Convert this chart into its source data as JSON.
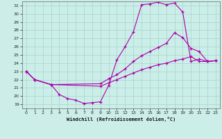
{
  "xlabel": "Windchill (Refroidissement éolien,°C)",
  "background_color": "#cceee8",
  "grid_color": "#aad8d0",
  "line_color": "#aa00aa",
  "xlim": [
    -0.5,
    23.5
  ],
  "ylim": [
    18.5,
    31.5
  ],
  "xticks": [
    0,
    1,
    2,
    3,
    4,
    5,
    6,
    7,
    8,
    9,
    10,
    11,
    12,
    13,
    14,
    15,
    16,
    17,
    18,
    19,
    20,
    21,
    22,
    23
  ],
  "yticks": [
    19,
    20,
    21,
    22,
    23,
    24,
    25,
    26,
    27,
    28,
    29,
    30,
    31
  ],
  "line1_x": [
    0,
    1,
    3,
    4,
    5,
    6,
    7,
    8,
    9,
    10,
    11,
    12,
    13,
    14,
    15,
    16,
    17,
    18,
    19,
    20,
    21,
    22,
    23
  ],
  "line1_y": [
    23.0,
    22.0,
    21.4,
    20.2,
    19.7,
    19.5,
    19.1,
    19.2,
    19.3,
    21.3,
    24.4,
    26.0,
    27.8,
    31.1,
    31.2,
    31.4,
    31.1,
    31.3,
    30.2,
    24.2,
    24.5,
    24.2,
    24.3
  ],
  "line2_x": [
    0,
    1,
    3,
    9,
    10,
    11,
    12,
    13,
    14,
    15,
    16,
    17,
    18,
    19,
    20,
    21,
    22,
    23
  ],
  "line2_y": [
    23.0,
    22.0,
    21.4,
    21.5,
    22.1,
    22.6,
    23.3,
    24.2,
    24.9,
    25.4,
    25.9,
    26.4,
    27.7,
    27.1,
    25.8,
    25.4,
    24.2,
    24.3
  ],
  "line3_x": [
    0,
    1,
    3,
    9,
    10,
    11,
    12,
    13,
    14,
    15,
    16,
    17,
    18,
    19,
    20,
    21,
    22,
    23
  ],
  "line3_y": [
    23.0,
    22.0,
    21.4,
    21.2,
    21.6,
    22.0,
    22.4,
    22.8,
    23.2,
    23.5,
    23.8,
    24.0,
    24.3,
    24.5,
    24.8,
    24.2,
    24.2,
    24.3
  ]
}
